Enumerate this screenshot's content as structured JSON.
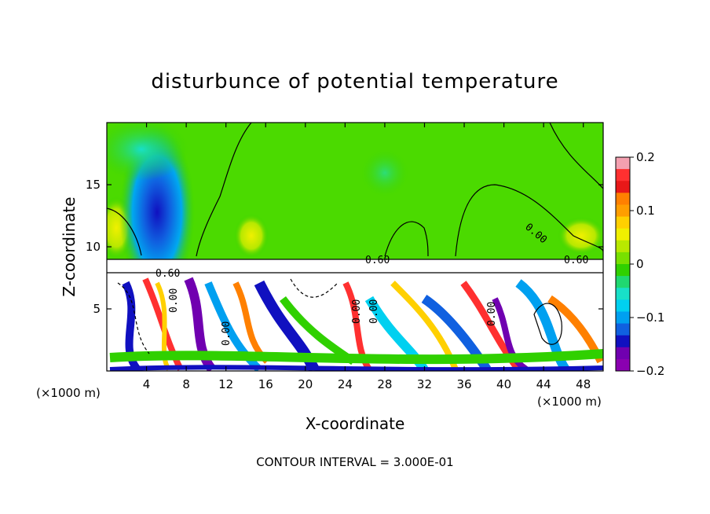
{
  "chart_data": {
    "type": "heatmap",
    "title": "disturbunce of potential temperature",
    "xlabel": "X-coordinate",
    "ylabel": "Z-coordinate",
    "x_unit": "(×1000 m)",
    "x_unit_right": "(×1000 m)",
    "xlim": [
      0,
      50
    ],
    "ylim": [
      0,
      20
    ],
    "x_ticks": [
      4,
      8,
      12,
      16,
      20,
      24,
      28,
      32,
      36,
      40,
      44,
      48
    ],
    "y_ticks": [
      5,
      10,
      15
    ],
    "colorbar": {
      "range": [
        -0.2,
        0.2
      ],
      "tick_values": [
        0.2,
        0.1,
        0,
        -0.1,
        -0.2
      ],
      "tick_labels": [
        "0.2",
        "0.1",
        "0",
        "−0.1",
        "−0.2"
      ],
      "colors": [
        "#f4a0b0",
        "#ff3030",
        "#e81818",
        "#ff8000",
        "#ff9e00",
        "#ffd000",
        "#f0f000",
        "#b8e800",
        "#78e000",
        "#30d000",
        "#20d870",
        "#18e0c8",
        "#00d0f0",
        "#00a0f0",
        "#1060e0",
        "#1010c0",
        "#7000b0",
        "#8a00b0"
      ]
    },
    "contour_labels": [
      "0.60",
      "0.60",
      "0.00",
      "0.00",
      "0.00",
      "0.00",
      "0.00",
      "0.00",
      "0.60"
    ],
    "annotation": "CONTOUR INTERVAL = 3.000E-01"
  }
}
